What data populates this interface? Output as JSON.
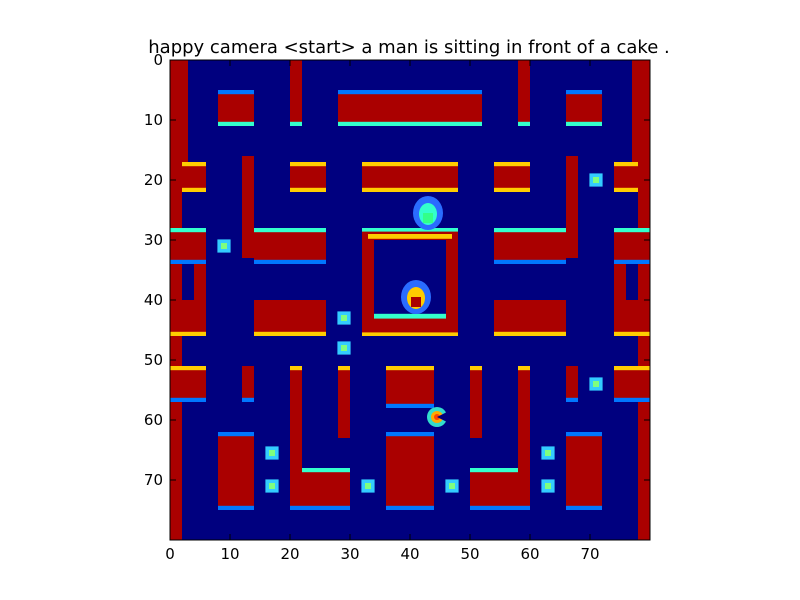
{
  "title": "happy camera <start> a man is sitting in front of a cake .",
  "colors": {
    "background": "#00007f",
    "wall": "#aa0000",
    "wall_edge_light": "#ffcc00",
    "wall_edge_cyan": "#33ffcc",
    "wall_edge_blue": "#0077ff",
    "pellet_outer": "#33ccff",
    "pellet_inner": "#7fff7f"
  },
  "axes": {
    "x_ticks": [
      "0",
      "10",
      "20",
      "30",
      "40",
      "50",
      "60",
      "70"
    ],
    "y_ticks": [
      "0",
      "10",
      "20",
      "30",
      "40",
      "50",
      "60",
      "70"
    ],
    "xlim": [
      0,
      80
    ],
    "ylim": [
      80,
      0
    ]
  },
  "sprites": [
    {
      "name": "ghost-top",
      "x": 43,
      "y": 25.5
    },
    {
      "name": "ghost-house",
      "x": 41,
      "y": 39.5
    },
    {
      "name": "pacman",
      "x": 44.5,
      "y": 59.5
    }
  ],
  "pellets": [
    [
      9,
      31
    ],
    [
      29,
      43
    ],
    [
      29,
      48
    ],
    [
      71,
      20
    ],
    [
      71,
      54
    ],
    [
      17,
      65.5
    ],
    [
      63,
      65.5
    ],
    [
      17,
      71
    ],
    [
      33,
      71
    ],
    [
      47,
      71
    ],
    [
      63,
      71
    ]
  ]
}
